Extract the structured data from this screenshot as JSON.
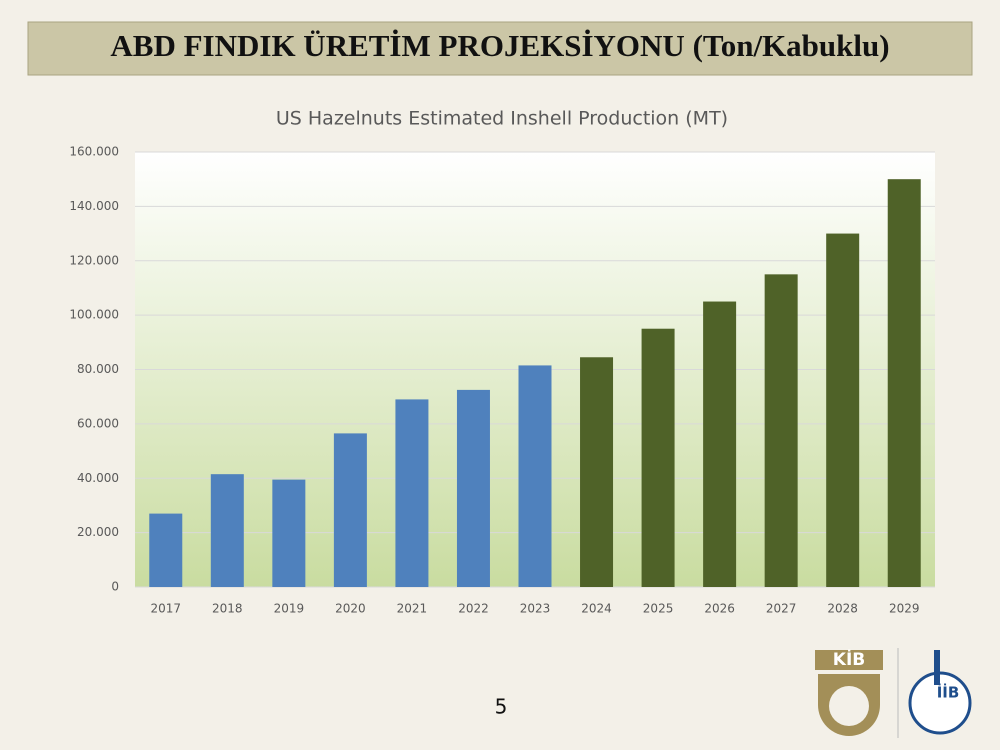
{
  "header": {
    "title": "ABD FINDIK ÜRETİM PROJEKSİYONU (Ton/Kabuklu)"
  },
  "chart_data": {
    "type": "bar",
    "title": "US Hazelnuts Estimated Inshell Production (MT)",
    "categories": [
      "2017",
      "2018",
      "2019",
      "2020",
      "2021",
      "2022",
      "2023",
      "2024",
      "2025",
      "2026",
      "2027",
      "2028",
      "2029"
    ],
    "values": [
      27000,
      41500,
      39500,
      56500,
      69000,
      72500,
      81500,
      84500,
      95000,
      105000,
      115000,
      130000,
      150000
    ],
    "colors": [
      "#4f81bd",
      "#4f81bd",
      "#4f81bd",
      "#4f81bd",
      "#4f81bd",
      "#4f81bd",
      "#4f81bd",
      "#4f6228",
      "#4f6228",
      "#4f6228",
      "#4f6228",
      "#4f6228",
      "#4f6228"
    ],
    "ylim": [
      0,
      160000
    ],
    "yticks": [
      0,
      {
        "value": 20000,
        "label": "20.000"
      },
      {
        "value": 40000,
        "label": "40.000"
      },
      {
        "value": 60000,
        "label": "60.000"
      },
      {
        "value": 80000,
        "label": "80.000"
      },
      {
        "value": 100000,
        "label": "100.000"
      },
      {
        "value": 120000,
        "label": "120.000"
      },
      {
        "value": 140000,
        "label": "140.000"
      },
      {
        "value": 160000,
        "label": "160.000"
      }
    ],
    "grid": true
  },
  "page_number": "5",
  "logos": [
    "KİB",
    "İİB"
  ]
}
